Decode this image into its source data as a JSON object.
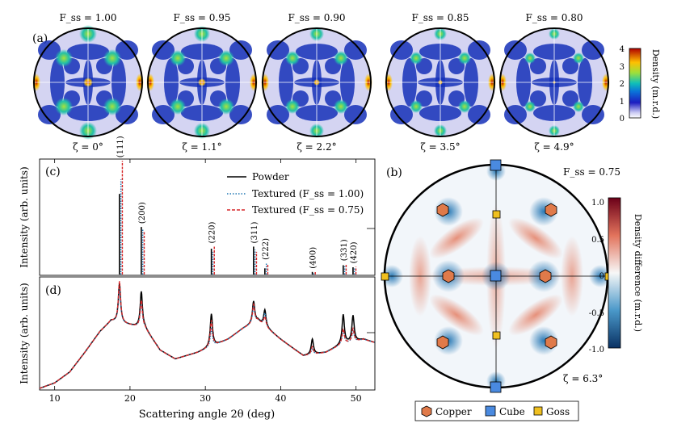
{
  "panel_labels": {
    "a": "(a)",
    "b": "(b)",
    "c": "(c)",
    "d": "(d)"
  },
  "pole_figures_top": [
    {
      "F": "F_ss = 1.00",
      "zeta": "ζ = 0°"
    },
    {
      "F": "F_ss = 0.95",
      "zeta": "ζ = 1.1°"
    },
    {
      "F": "F_ss = 0.90",
      "zeta": "ζ = 2.2°"
    },
    {
      "F": "F_ss = 0.85",
      "zeta": "ζ = 3.5°"
    },
    {
      "F": "F_ss = 0.80",
      "zeta": "ζ = 4.9°"
    }
  ],
  "colorbar_a": {
    "label": "Density (m.r.d.)",
    "ticks": [
      "0",
      "1",
      "2",
      "3",
      "4"
    ]
  },
  "pole_figure_b": {
    "F": "F_ss = 0.75",
    "zeta": "ζ = 6.3°"
  },
  "colorbar_b": {
    "label": "Density difference (m.r.d.)",
    "ticks": [
      "1.0",
      "0.5",
      "0",
      "-0.5",
      "-1.0"
    ]
  },
  "legend_b": {
    "copper": "Copper",
    "cube": "Cube",
    "goss": "Goss"
  },
  "legend_c": {
    "powder": "Powder",
    "textured1": "Textured (F_ss = 1.00)",
    "textured2": "Textured (F_ss = 0.75)"
  },
  "y_label_c": "Intensity (arb. units)",
  "y_label_d": "Intensity (arb. units)",
  "x_label": "Scattering angle 2θ (deg)",
  "colors": {
    "powder": "#000000",
    "textured1": "#1f77b4",
    "textured2": "#d62728"
  },
  "chart_data": [
    {
      "type": "bar",
      "panel": "c",
      "xlim": [
        8,
        52.5
      ],
      "xlabel": "",
      "ylabel": "Intensity (arb. units)",
      "reflections": [
        {
          "hkl": "(111)",
          "x": 18.6,
          "powder": 0.78,
          "textured1": 0.92,
          "textured2": 1.1
        },
        {
          "hkl": "(200)",
          "x": 21.5,
          "powder": 0.46,
          "textured1": 0.44,
          "textured2": 0.42
        },
        {
          "hkl": "(220)",
          "x": 30.8,
          "powder": 0.25,
          "textured1": 0.22,
          "textured2": 0.27
        },
        {
          "hkl": "(311)",
          "x": 36.4,
          "powder": 0.27,
          "textured1": 0.24,
          "textured2": 0.22
        },
        {
          "hkl": "(222)",
          "x": 37.9,
          "powder": 0.06,
          "textured1": 0.11,
          "textured2": 0.1
        },
        {
          "hkl": "(400)",
          "x": 44.2,
          "powder": 0.025,
          "textured1": 0.02,
          "textured2": 0.025
        },
        {
          "hkl": "(331)",
          "x": 48.3,
          "powder": 0.09,
          "textured1": 0.08,
          "textured2": 0.1
        },
        {
          "hkl": "(420)",
          "x": 49.6,
          "powder": 0.07,
          "textured1": 0.06,
          "textured2": 0.075
        }
      ]
    },
    {
      "type": "line",
      "panel": "d",
      "xlim": [
        8,
        52.5
      ],
      "xticks": [
        10,
        20,
        30,
        40,
        50
      ],
      "xlabel": "Scattering angle 2θ (deg)",
      "ylabel": "Intensity (arb. units)",
      "background": [
        [
          8,
          0.0
        ],
        [
          10,
          0.05
        ],
        [
          12,
          0.15
        ],
        [
          14,
          0.33
        ],
        [
          16,
          0.52
        ],
        [
          17.5,
          0.62
        ],
        [
          22,
          0.55
        ],
        [
          24,
          0.35
        ],
        [
          26,
          0.27
        ],
        [
          29,
          0.33
        ],
        [
          33,
          0.45
        ],
        [
          35,
          0.55
        ],
        [
          37,
          0.62
        ],
        [
          40,
          0.45
        ],
        [
          43,
          0.3
        ],
        [
          46,
          0.33
        ],
        [
          48,
          0.4
        ],
        [
          51,
          0.45
        ],
        [
          52.5,
          0.42
        ]
      ],
      "series": [
        {
          "name": "Powder",
          "peaks": [
            [
              18.6,
              0.36
            ],
            [
              21.5,
              0.33
            ],
            [
              30.8,
              0.3
            ],
            [
              36.4,
              0.2
            ],
            [
              37.9,
              0.15
            ],
            [
              44.2,
              0.14
            ],
            [
              48.3,
              0.27
            ],
            [
              49.6,
              0.24
            ]
          ]
        },
        {
          "name": "Textured (F_ss = 1.00)",
          "peaks": [
            [
              18.6,
              0.32
            ],
            [
              21.5,
              0.24
            ],
            [
              30.8,
              0.16
            ],
            [
              36.4,
              0.15
            ],
            [
              37.9,
              0.12
            ],
            [
              44.2,
              0.05
            ],
            [
              48.3,
              0.13
            ],
            [
              49.6,
              0.1
            ]
          ]
        },
        {
          "name": "Textured (F_ss = 0.75)",
          "peaks": [
            [
              18.6,
              0.38
            ],
            [
              21.5,
              0.25
            ],
            [
              30.8,
              0.24
            ],
            [
              36.4,
              0.17
            ],
            [
              37.9,
              0.09
            ],
            [
              44.2,
              0.07
            ],
            [
              48.3,
              0.14
            ],
            [
              49.6,
              0.12
            ]
          ]
        }
      ]
    }
  ]
}
